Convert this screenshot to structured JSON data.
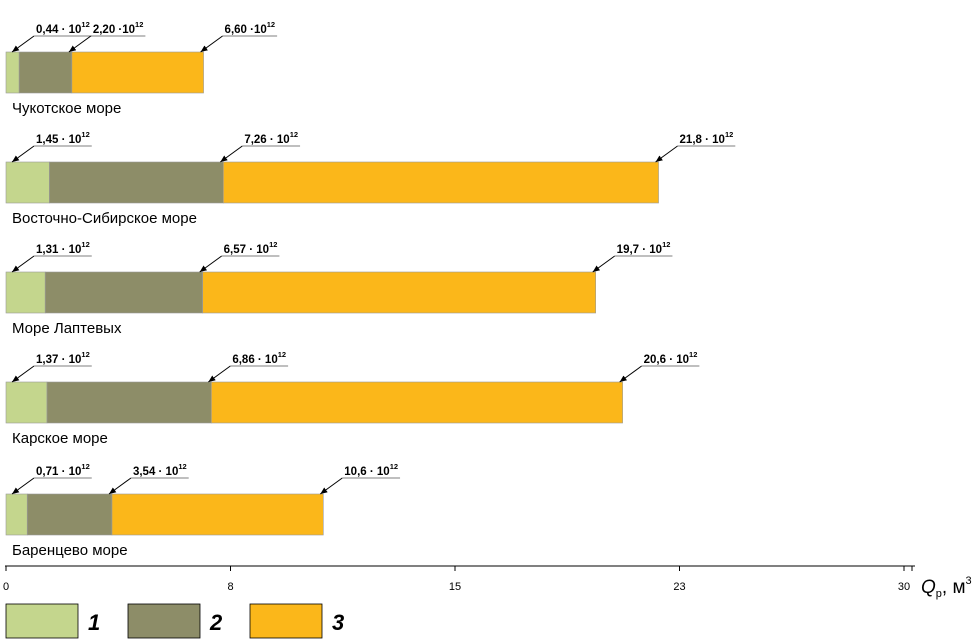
{
  "chart_data": {
    "type": "bar",
    "orientation": "horizontal",
    "stacked": true,
    "xlabel": {
      "main": "Q",
      "sub": "р",
      "unit": ", м",
      "unit_sup": "3"
    },
    "x_ticks": [
      "0",
      "8",
      "15",
      "23",
      "30"
    ],
    "x_tick_values": [
      0,
      7.5,
      15,
      22.5,
      30
    ],
    "xlim": [
      0,
      30.4
    ],
    "grid": false,
    "legend_position": "bottom-left",
    "series": [
      {
        "name": "1",
        "color": "#c4d68d"
      },
      {
        "name": "2",
        "color": "#8d8d68"
      },
      {
        "name": "3",
        "color": "#fbb71a"
      }
    ],
    "categories": [
      {
        "name": "Чукотское море",
        "values": [
          0.44,
          2.2,
          6.6
        ],
        "labels": [
          {
            "mantissa": "0,44 · 10",
            "exp": "12"
          },
          {
            "mantissa": "2,20 ·10",
            "exp": "12"
          },
          {
            "mantissa": "6,60 ·10",
            "exp": "12"
          }
        ]
      },
      {
        "name": "Восточно-Сибирское море",
        "values": [
          1.45,
          7.26,
          21.8
        ],
        "labels": [
          {
            "mantissa": "1,45 · 10",
            "exp": "12"
          },
          {
            "mantissa": "7,26 · 10",
            "exp": "12"
          },
          {
            "mantissa": "21,8 · 10",
            "exp": "12"
          }
        ]
      },
      {
        "name": "Море Лаптевых",
        "values": [
          1.31,
          6.57,
          19.7
        ],
        "labels": [
          {
            "mantissa": "1,31 · 10",
            "exp": "12"
          },
          {
            "mantissa": "6,57 · 10",
            "exp": "12"
          },
          {
            "mantissa": "19,7 · 10",
            "exp": "12"
          }
        ]
      },
      {
        "name": "Карское море",
        "values": [
          1.37,
          6.86,
          20.6
        ],
        "labels": [
          {
            "mantissa": "1,37 · 10",
            "exp": "12"
          },
          {
            "mantissa": "6,86 · 10",
            "exp": "12"
          },
          {
            "mantissa": "20,6 · 10",
            "exp": "12"
          }
        ]
      },
      {
        "name": "Баренцево море",
        "values": [
          0.71,
          3.54,
          10.6
        ],
        "labels": [
          {
            "mantissa": "0,71 · 10",
            "exp": "12"
          },
          {
            "mantissa": "3,54 · 10",
            "exp": "12"
          },
          {
            "mantissa": "10,6 · 10",
            "exp": "12"
          }
        ]
      }
    ]
  }
}
